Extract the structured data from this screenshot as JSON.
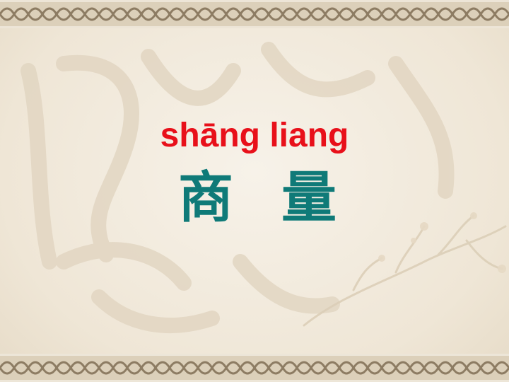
{
  "slide": {
    "pinyin": "shāng liang",
    "characters": [
      "商",
      "量"
    ]
  },
  "colors": {
    "pinyin": "#e8101a",
    "characters": "#0f7a78",
    "background": "#f3ece0",
    "border_band": "#d9ccb5",
    "border_pattern": "#8d7c63"
  },
  "decorations": {
    "border_pattern": "chinese-knot-pattern",
    "background_art": "faded-calligraphy-and-plum-branch"
  }
}
